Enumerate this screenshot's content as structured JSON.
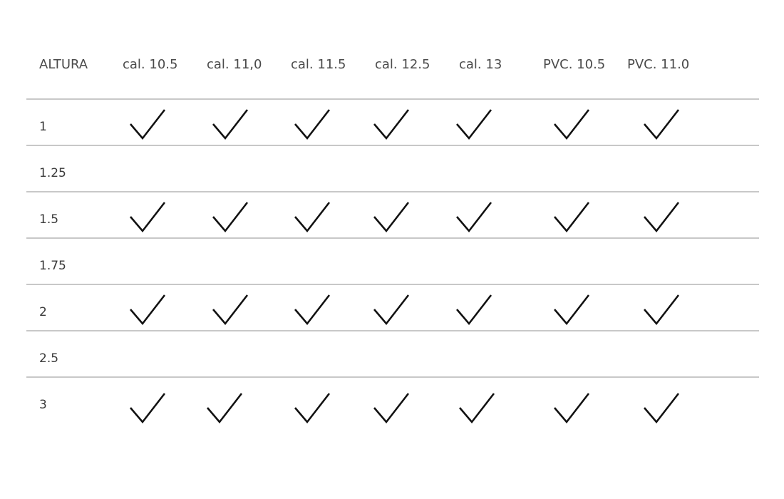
{
  "table": {
    "headers": [
      "ALTURA",
      "cal. 10.5",
      "cal. 11,0",
      "cal. 11.5",
      "cal. 12.5",
      "cal. 13",
      "PVC. 10.5",
      "PVC. 11.0"
    ],
    "rows": [
      {
        "altura": "1",
        "checks": [
          true,
          true,
          true,
          true,
          true,
          true,
          true
        ]
      },
      {
        "altura": "1.25",
        "checks": [
          false,
          false,
          false,
          false,
          false,
          false,
          false
        ]
      },
      {
        "altura": "1.5",
        "checks": [
          true,
          true,
          true,
          true,
          true,
          true,
          true
        ]
      },
      {
        "altura": "1.75",
        "checks": [
          false,
          false,
          false,
          false,
          false,
          false,
          false
        ]
      },
      {
        "altura": "2",
        "checks": [
          true,
          true,
          true,
          true,
          true,
          true,
          true
        ]
      },
      {
        "altura": "2.5",
        "checks": [
          false,
          false,
          false,
          false,
          false,
          false,
          false
        ]
      },
      {
        "altura": "3",
        "checks": [
          true,
          true,
          true,
          true,
          true,
          true,
          true
        ]
      }
    ],
    "check_icon": "checkmark-icon",
    "line_color": "#c8c8c8",
    "check_color": "#111111"
  }
}
